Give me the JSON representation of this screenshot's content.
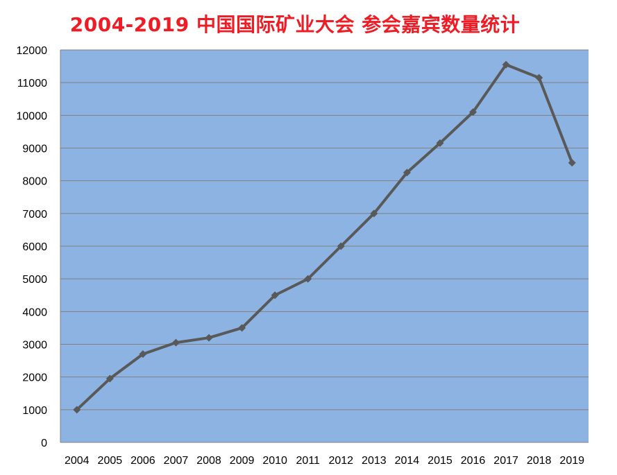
{
  "chart_data": {
    "type": "line",
    "title": "2004-2019 中国国际矿业大会 参会嘉宾数量统计",
    "xlabel": "",
    "ylabel": "",
    "categories": [
      "2004",
      "2005",
      "2006",
      "2007",
      "2008",
      "2009",
      "2010",
      "2011",
      "2012",
      "2013",
      "2014",
      "2015",
      "2016",
      "2017",
      "2018",
      "2019"
    ],
    "series": [
      {
        "values": [
          1000,
          1950,
          2700,
          3050,
          3200,
          3500,
          4500,
          5000,
          6000,
          7000,
          8250,
          9150,
          10100,
          11550,
          11150,
          8550
        ]
      }
    ],
    "ylim": [
      0,
      12000
    ],
    "yticks": [
      0,
      1000,
      2000,
      3000,
      4000,
      5000,
      6000,
      7000,
      8000,
      9000,
      10000,
      11000,
      12000
    ],
    "grid": true,
    "legend": "none",
    "colors": {
      "title": "#ee1c25",
      "plot_background": "#8db3e2",
      "line": "#595959",
      "gridline": "#808080",
      "axis": "#808080"
    }
  }
}
